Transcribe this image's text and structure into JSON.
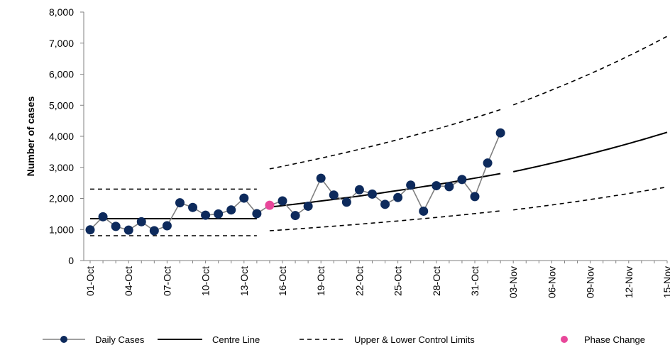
{
  "chart_data": {
    "type": "line",
    "ylabel": "Number of cases",
    "ylim": [
      0,
      8000
    ],
    "y_ticks": [
      "0",
      "1,000",
      "2,000",
      "3,000",
      "4,000",
      "5,000",
      "6,000",
      "7,000",
      "8,000"
    ],
    "x_ticks": [
      "01-Oct",
      "04-Oct",
      "07-Oct",
      "10-Oct",
      "13-Oct",
      "16-Oct",
      "19-Oct",
      "22-Oct",
      "25-Oct",
      "28-Oct",
      "31-Oct",
      "03-Nov",
      "06-Nov",
      "09-Nov",
      "12-Nov",
      "15-Nov"
    ],
    "x_days": [
      1,
      46
    ],
    "daily_cases": {
      "name": "Daily Cases",
      "color": "#0d2a5c",
      "day": [
        1,
        2,
        3,
        4,
        5,
        6,
        7,
        8,
        9,
        10,
        11,
        12,
        13,
        14,
        16,
        17,
        18,
        19,
        20,
        21,
        22,
        23,
        24,
        25,
        26,
        27,
        28,
        29,
        30,
        31,
        32,
        33
      ],
      "values": [
        990,
        1410,
        1100,
        980,
        1250,
        960,
        1120,
        1860,
        1710,
        1460,
        1500,
        1630,
        2010,
        1510,
        1920,
        1450,
        1750,
        2650,
        2110,
        1880,
        2280,
        2140,
        1810,
        2030,
        2430,
        1590,
        2410,
        2380,
        2610,
        2060,
        3140,
        4110
      ]
    },
    "phase_change": {
      "name": "Phase Change",
      "color": "#e8479a",
      "day": 15,
      "value": 1780
    },
    "centre_line": {
      "name": "Centre Line",
      "phase1": {
        "days": [
          1,
          14
        ],
        "value": 1350
      },
      "phase2": {
        "days": [
          15,
          33
        ],
        "start": 1720,
        "end": 2800
      },
      "projection": {
        "days": [
          34,
          46
        ],
        "start": 2860,
        "end": 4130
      }
    },
    "control_limits": {
      "name": "Upper & Lower Control Limits",
      "phase1": {
        "days": [
          1,
          14
        ],
        "upper": 2300,
        "lower": 800
      },
      "phase2_upper": {
        "days": [
          15,
          33
        ],
        "start": 2950,
        "end": 4860
      },
      "phase2_lower": {
        "days": [
          15,
          33
        ],
        "start": 960,
        "end": 1600
      },
      "projection_upper": {
        "days": [
          34,
          46
        ],
        "start": 5010,
        "end": 7220
      },
      "projection_lower": {
        "days": [
          34,
          46
        ],
        "start": 1630,
        "end": 2370
      }
    },
    "grid": false,
    "legend_position": "bottom"
  },
  "legend": [
    {
      "key": "daily",
      "label": "Daily Cases"
    },
    {
      "key": "centre",
      "label": "Centre Line"
    },
    {
      "key": "limits",
      "label": "Upper & Lower Control Limits"
    },
    {
      "key": "phase",
      "label": "Phase Change"
    }
  ]
}
